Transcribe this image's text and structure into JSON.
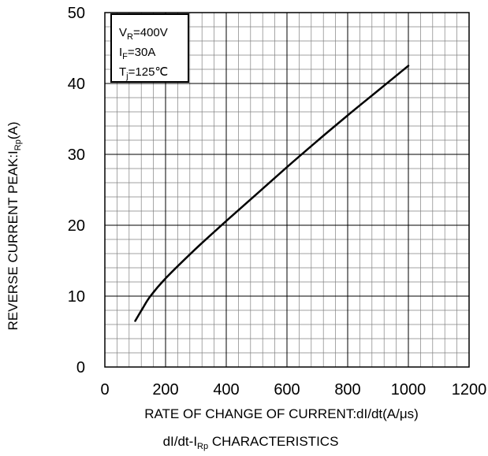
{
  "chart_data": {
    "type": "line",
    "title": "dI/dt-IRp CHARACTERISTICS",
    "title_parts": {
      "pre": "dI/dt-I",
      "sub": "Rp",
      "post": " CHARACTERISTICS"
    },
    "xlabel": "RATE OF CHANGE OF CURRENT:dI/dt(A/μs)",
    "ylabel": "REVERSE CURRENT PEAK:IRp(A)",
    "ylabel_parts": {
      "pre": "REVERSE CURRENT PEAK:I",
      "sub": "Rp",
      "post": "(A)"
    },
    "xlim": [
      0,
      1200
    ],
    "ylim": [
      0,
      50
    ],
    "x_ticks": [
      "0",
      "200",
      "400",
      "600",
      "800",
      "1000",
      "1200"
    ],
    "y_ticks": [
      "0",
      "10",
      "20",
      "30",
      "40",
      "50"
    ],
    "grid": true,
    "annotation": {
      "lines": [
        {
          "pre": "V",
          "sub": "R",
          "post": "=400V"
        },
        {
          "pre": "I",
          "sub": "F",
          "post": "=30A"
        },
        {
          "pre": "T",
          "sub": "j",
          "post": "=125℃"
        }
      ]
    },
    "series": [
      {
        "x": [
          100,
          125,
          150,
          200,
          300,
          400,
          500,
          600,
          700,
          800,
          900,
          1000
        ],
        "y": [
          6.5,
          8.3,
          10.0,
          12.5,
          16.7,
          20.6,
          24.4,
          28.2,
          31.9,
          35.5,
          39.0,
          42.5
        ],
        "color": "#000000"
      }
    ]
  }
}
